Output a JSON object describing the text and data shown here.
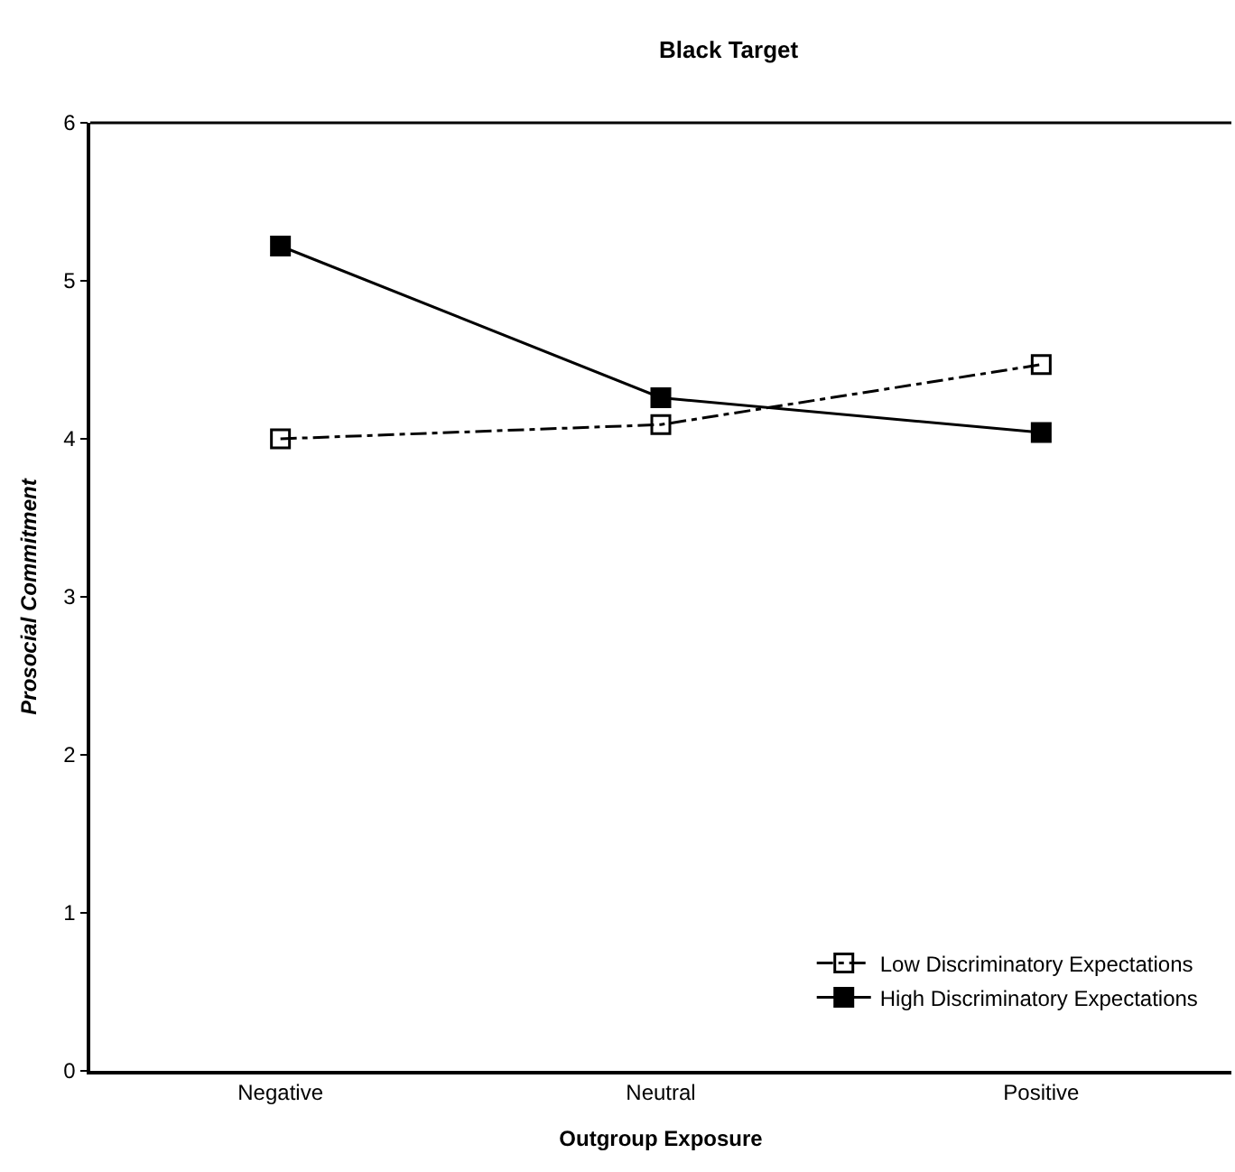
{
  "chart_data": {
    "type": "line",
    "title": "Black Target",
    "xlabel": "Outgroup Exposure",
    "ylabel": "Prosocial Commitment",
    "categories": [
      "Negative",
      "Neutral",
      "Positive"
    ],
    "series": [
      {
        "name": "Low Discriminatory Expectations",
        "color": "#000000",
        "line_style": "dashed",
        "values": [
          4.0,
          4.09,
          4.47
        ]
      },
      {
        "name": "High Discriminatory Expectations",
        "color": "#000000",
        "line_style": "solid",
        "values": [
          5.22,
          4.26,
          4.04
        ]
      }
    ],
    "ylim": [
      0,
      6
    ],
    "yticks": [
      0,
      1,
      2,
      3,
      4,
      5,
      6
    ],
    "legend": "bottom right",
    "marker": "square"
  }
}
